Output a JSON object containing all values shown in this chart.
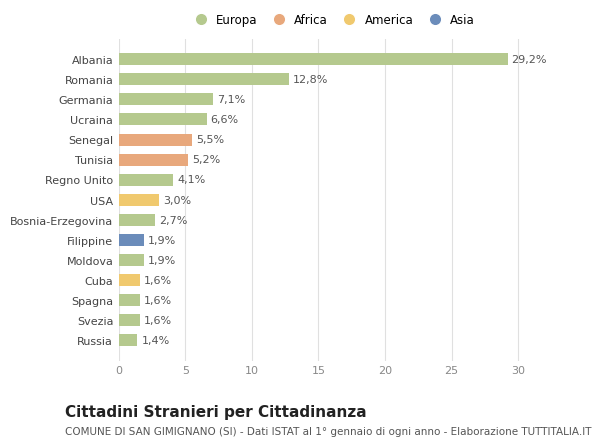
{
  "countries": [
    "Albania",
    "Romania",
    "Germania",
    "Ucraina",
    "Senegal",
    "Tunisia",
    "Regno Unito",
    "USA",
    "Bosnia-Erzegovina",
    "Filippine",
    "Moldova",
    "Cuba",
    "Spagna",
    "Svezia",
    "Russia"
  ],
  "values": [
    29.2,
    12.8,
    7.1,
    6.6,
    5.5,
    5.2,
    4.1,
    3.0,
    2.7,
    1.9,
    1.9,
    1.6,
    1.6,
    1.6,
    1.4
  ],
  "labels": [
    "29,2%",
    "12,8%",
    "7,1%",
    "6,6%",
    "5,5%",
    "5,2%",
    "4,1%",
    "3,0%",
    "2,7%",
    "1,9%",
    "1,9%",
    "1,6%",
    "1,6%",
    "1,6%",
    "1,4%"
  ],
  "categories": [
    "Europa",
    "Africa",
    "America",
    "Asia"
  ],
  "bar_colors": [
    "#b5c98e",
    "#b5c98e",
    "#b5c98e",
    "#b5c98e",
    "#e8a87c",
    "#e8a87c",
    "#b5c98e",
    "#f0c96e",
    "#b5c98e",
    "#6b8cba",
    "#b5c98e",
    "#f0c96e",
    "#b5c98e",
    "#b5c98e",
    "#b5c98e"
  ],
  "legend_colors": [
    "#b5c98e",
    "#e8a87c",
    "#f0c96e",
    "#6b8cba"
  ],
  "title": "Cittadini Stranieri per Cittadinanza",
  "subtitle": "COMUNE DI SAN GIMIGNANO (SI) - Dati ISTAT al 1° gennaio di ogni anno - Elaborazione TUTTITALIA.IT",
  "xlim": [
    0,
    32
  ],
  "xticks": [
    0,
    5,
    10,
    15,
    20,
    25,
    30
  ],
  "background_color": "#ffffff",
  "plot_bg_color": "#ffffff",
  "grid_color": "#e0e0e0",
  "bar_height": 0.6,
  "label_fontsize": 8,
  "title_fontsize": 11,
  "subtitle_fontsize": 7.5,
  "tick_fontsize": 8,
  "legend_fontsize": 8.5
}
